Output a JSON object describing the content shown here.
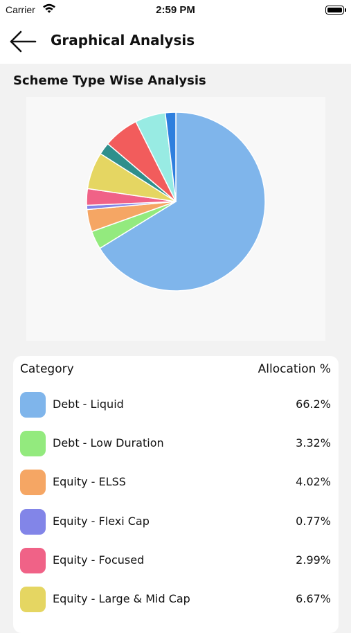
{
  "status_bar": {
    "carrier": "Carrier",
    "time": "2:59 PM"
  },
  "header": {
    "title": "Graphical Analysis",
    "back_icon": "arrow-left-icon"
  },
  "section": {
    "title": "Scheme Type Wise Analysis"
  },
  "table": {
    "category_header": "Category",
    "allocation_header": "Allocation %",
    "rows": [
      {
        "label": "Debt - Liquid",
        "value": "66.2%",
        "color": "#7fb5eb"
      },
      {
        "label": "Debt - Low Duration",
        "value": "3.32%",
        "color": "#93ea7e"
      },
      {
        "label": "Equity - ELSS",
        "value": "4.02%",
        "color": "#f5a664"
      },
      {
        "label": "Equity - Flexi Cap",
        "value": "0.77%",
        "color": "#8285e8"
      },
      {
        "label": "Equity - Focused",
        "value": "2.99%",
        "color": "#f06287"
      },
      {
        "label": "Equity - Large & Mid Cap",
        "value": "6.67%",
        "color": "#e5d662"
      }
    ]
  },
  "chart_data": {
    "type": "pie",
    "categories": [
      "Debt - Liquid",
      "Debt - Low Duration",
      "Equity - ELSS",
      "Equity - Flexi Cap",
      "Equity - Focused",
      "Equity - Large & Mid Cap",
      "",
      "",
      "",
      ""
    ],
    "values": [
      66.2,
      3.32,
      4.02,
      0.77,
      2.99,
      6.67,
      2.2,
      6.4,
      5.5,
      1.9
    ],
    "colors": [
      "#7fb5eb",
      "#93ea7e",
      "#f5a664",
      "#8285e8",
      "#f06287",
      "#e5d662",
      "#2f8f8c",
      "#f25c5c",
      "#98ebe3",
      "#2e7fde"
    ],
    "direction": "clockwise from top",
    "legend": "table below chart"
  }
}
